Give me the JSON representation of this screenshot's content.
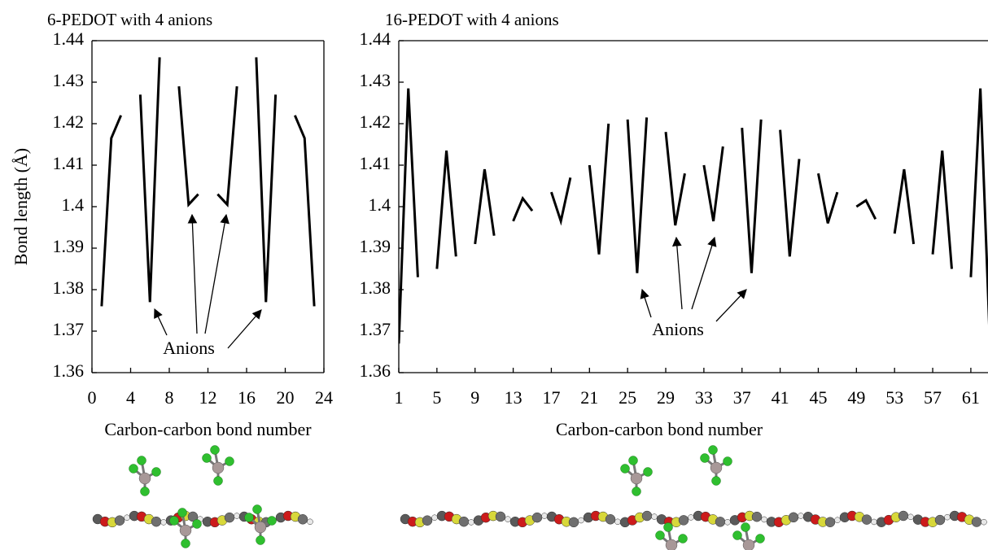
{
  "chart_data": [
    {
      "type": "line",
      "title": "6-PEDOT with 4 anions",
      "x_label": "Carbon-carbon bond number",
      "y_label": "Bond length (Å)",
      "x": [
        1,
        2,
        3,
        4,
        5,
        6,
        7,
        8,
        9,
        10,
        11,
        12,
        13,
        14,
        15,
        16,
        17,
        18,
        19,
        20,
        21,
        22,
        23
      ],
      "values": [
        1.376,
        1.4165,
        1.422,
        null,
        1.427,
        1.377,
        1.436,
        null,
        1.429,
        1.4005,
        1.403,
        null,
        1.403,
        1.4005,
        1.429,
        null,
        1.436,
        1.377,
        1.427,
        null,
        1.422,
        1.4165,
        1.376
      ],
      "color": "#000000",
      "xlim": [
        0,
        24
      ],
      "xticks": [
        0,
        4,
        8,
        12,
        16,
        20,
        24
      ],
      "ylim": [
        1.36,
        1.44
      ],
      "yticks": [
        1.36,
        1.37,
        1.38,
        1.39,
        1.4,
        1.41,
        1.42,
        1.43,
        1.44
      ],
      "annotations": [
        "Anions"
      ]
    },
    {
      "type": "line",
      "title": "16-PEDOT with 4 anions",
      "x_label": "Carbon-carbon bond number",
      "x": [
        1,
        2,
        3,
        4,
        5,
        6,
        7,
        8,
        9,
        10,
        11,
        12,
        13,
        14,
        15,
        16,
        17,
        18,
        19,
        20,
        21,
        22,
        23,
        24,
        25,
        26,
        27,
        28,
        29,
        30,
        31,
        32,
        33,
        34,
        35,
        36,
        37,
        38,
        39,
        40,
        41,
        42,
        43,
        44,
        45,
        46,
        47,
        48,
        49,
        50,
        51,
        52,
        53,
        54,
        55,
        56,
        57,
        58,
        59,
        60,
        61,
        62,
        63
      ],
      "values": [
        1.367,
        1.4285,
        1.383,
        null,
        1.385,
        1.4135,
        1.388,
        null,
        1.391,
        1.409,
        1.393,
        null,
        1.3965,
        1.402,
        1.399,
        null,
        1.4035,
        1.3965,
        1.407,
        null,
        1.41,
        1.3885,
        1.42,
        null,
        1.421,
        1.384,
        1.4215,
        null,
        1.418,
        1.3955,
        1.408,
        null,
        1.41,
        1.3965,
        1.4145,
        null,
        1.419,
        1.384,
        1.421,
        null,
        1.4185,
        1.388,
        1.4115,
        null,
        1.408,
        1.396,
        1.4035,
        null,
        1.4,
        1.4015,
        1.397,
        null,
        1.3935,
        1.409,
        1.391,
        null,
        1.3885,
        1.4135,
        1.385,
        null,
        1.383,
        1.4285,
        1.367
      ],
      "color": "#000000",
      "xlim": [
        1,
        62.8
      ],
      "xticks": [
        1,
        5,
        9,
        13,
        17,
        21,
        25,
        29,
        33,
        37,
        41,
        45,
        49,
        53,
        57,
        61
      ],
      "ylim": [
        1.36,
        1.44
      ],
      "yticks": [
        1.36,
        1.37,
        1.38,
        1.39,
        1.4,
        1.41,
        1.42,
        1.43,
        1.44
      ],
      "annotations": [
        "Anions"
      ]
    }
  ]
}
